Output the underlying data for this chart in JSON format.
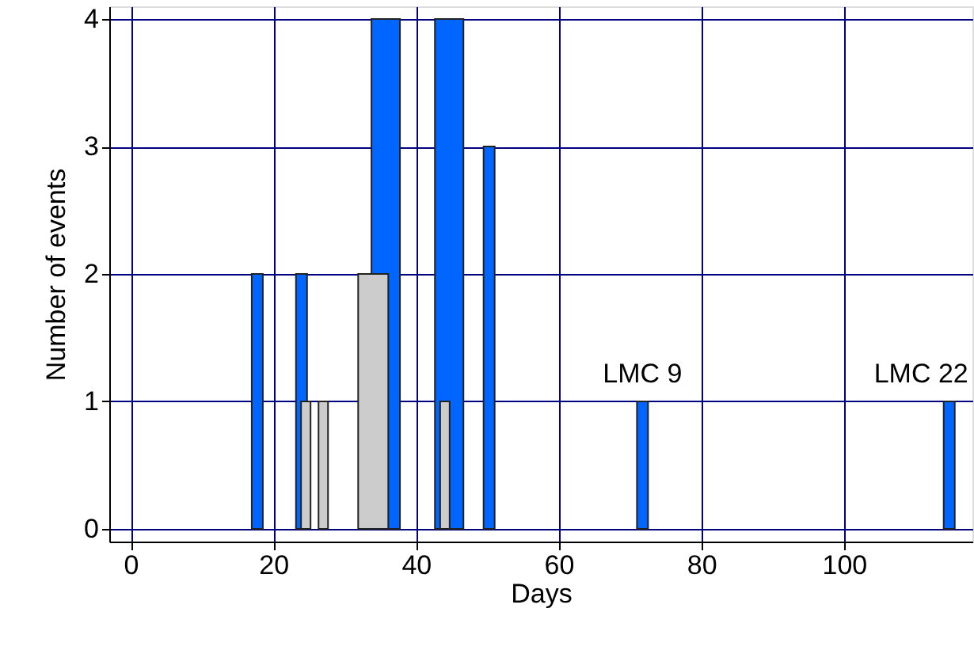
{
  "chart_data": {
    "type": "bar",
    "xlabel": "Days",
    "ylabel": "Number of events",
    "series": [
      {
        "color": "#0066ff",
        "x": [
          17.75,
          23.95,
          50.25,
          71.75,
          114.75
        ],
        "values": [
          2,
          2,
          3,
          1,
          1
        ]
      },
      {
        "color": "#0066ff",
        "x": [
          35.75,
          44.65
        ],
        "values": [
          4,
          4
        ]
      },
      {
        "color": "#cccccc",
        "x": [
          24.55,
          27,
          44.05
        ],
        "values": [
          1,
          1,
          1
        ]
      },
      {
        "color": "#cccccc",
        "x": [
          34
        ],
        "values": [
          2
        ]
      }
    ],
    "annotations": [
      {
        "text": "LMC 9",
        "x": 71.75,
        "y": 1
      },
      {
        "text": "LMC 22",
        "x": 114.75,
        "y": 1
      }
    ],
    "xlim": [
      -3,
      118
    ],
    "xticks": [
      0,
      20,
      40,
      60,
      80,
      100
    ],
    "ylim": [
      -0.1,
      4.1
    ],
    "yticks": [
      0,
      1,
      2,
      3,
      4
    ],
    "grid": true
  }
}
